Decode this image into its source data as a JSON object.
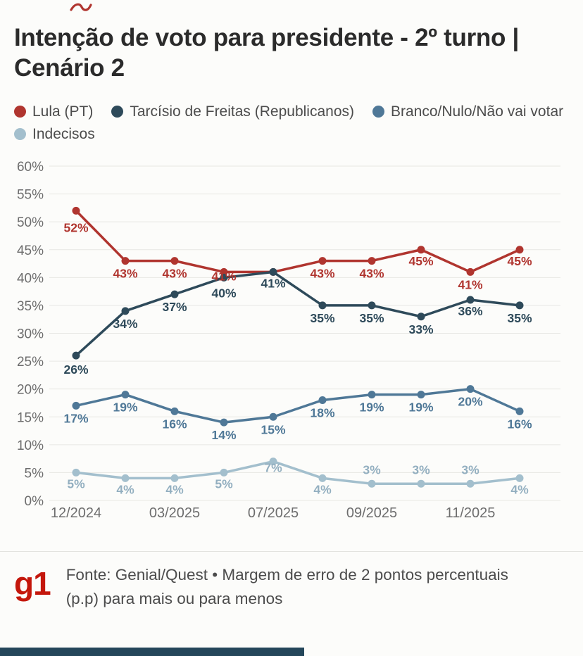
{
  "page": {
    "title": "Intenção de voto para presidente - 2º turno | Cenário 2",
    "footer": {
      "logo": "g1",
      "source": "Fonte: Genial/Quest • Margem de erro de 2 pontos percentuais (p.p) para mais ou para menos"
    }
  },
  "legend": {
    "items": [
      {
        "label": "Lula (PT)",
        "color": "#b0352f"
      },
      {
        "label": "Tarcísio de Freitas (Republicanos)",
        "color": "#2e4a5a"
      },
      {
        "label": "Branco/Nulo/Não vai votar",
        "color": "#4f7897"
      },
      {
        "label": "Indecisos",
        "color": "#a3bfcd"
      }
    ]
  },
  "chart_data": {
    "type": "line",
    "title": "Intenção de voto para presidente - 2º turno | Cenário 2",
    "xlabel": "",
    "ylabel": "",
    "ylim": [
      0,
      60
    ],
    "y_tick_step": 5,
    "grid": true,
    "legend_position": "top",
    "n_points": 10,
    "x_tick_labels": [
      "12/2024",
      "03/2025",
      "07/2025",
      "09/2025",
      "11/2025"
    ],
    "x_tick_indices": [
      0,
      2,
      4,
      6,
      8
    ],
    "series": [
      {
        "name": "Lula (PT)",
        "color": "#b0352f",
        "values": [
          52,
          43,
          43,
          41,
          41,
          43,
          43,
          45,
          41,
          45
        ],
        "labels": [
          "52%",
          "43%",
          "43%",
          "41%",
          "",
          "43%",
          "43%",
          "45%",
          "41%",
          "45%"
        ],
        "label_dy": [
          30,
          24,
          24,
          12,
          0,
          24,
          24,
          22,
          24,
          22
        ]
      },
      {
        "name": "Tarcísio de Freitas (Republicanos)",
        "color": "#2e4a5a",
        "values": [
          26,
          34,
          37,
          40,
          41,
          35,
          35,
          33,
          36,
          35
        ],
        "labels": [
          "26%",
          "34%",
          "37%",
          "40%",
          "41%",
          "35%",
          "35%",
          "33%",
          "36%",
          "35%"
        ],
        "label_dy": [
          26,
          24,
          24,
          28,
          22,
          24,
          24,
          24,
          22,
          24
        ]
      },
      {
        "name": "Branco/Nulo/Não vai votar",
        "color": "#4f7897",
        "values": [
          17,
          19,
          16,
          14,
          15,
          18,
          19,
          19,
          20,
          16
        ],
        "labels": [
          "17%",
          "19%",
          "16%",
          "14%",
          "15%",
          "18%",
          "19%",
          "19%",
          "20%",
          "16%"
        ],
        "label_dy": [
          24,
          24,
          24,
          24,
          24,
          24,
          24,
          24,
          24,
          24
        ]
      },
      {
        "name": "Indecisos",
        "color": "#a3bfcd",
        "label_color": "#93afc0",
        "values": [
          5,
          4,
          4,
          5,
          7,
          4,
          3,
          3,
          3,
          4
        ],
        "labels": [
          "5%",
          "4%",
          "4%",
          "5%",
          "7%",
          "4%",
          "3%",
          "3%",
          "3%",
          "4%"
        ],
        "label_dy": [
          22,
          22,
          22,
          22,
          15,
          22,
          -14,
          -14,
          -14,
          22
        ]
      }
    ]
  }
}
